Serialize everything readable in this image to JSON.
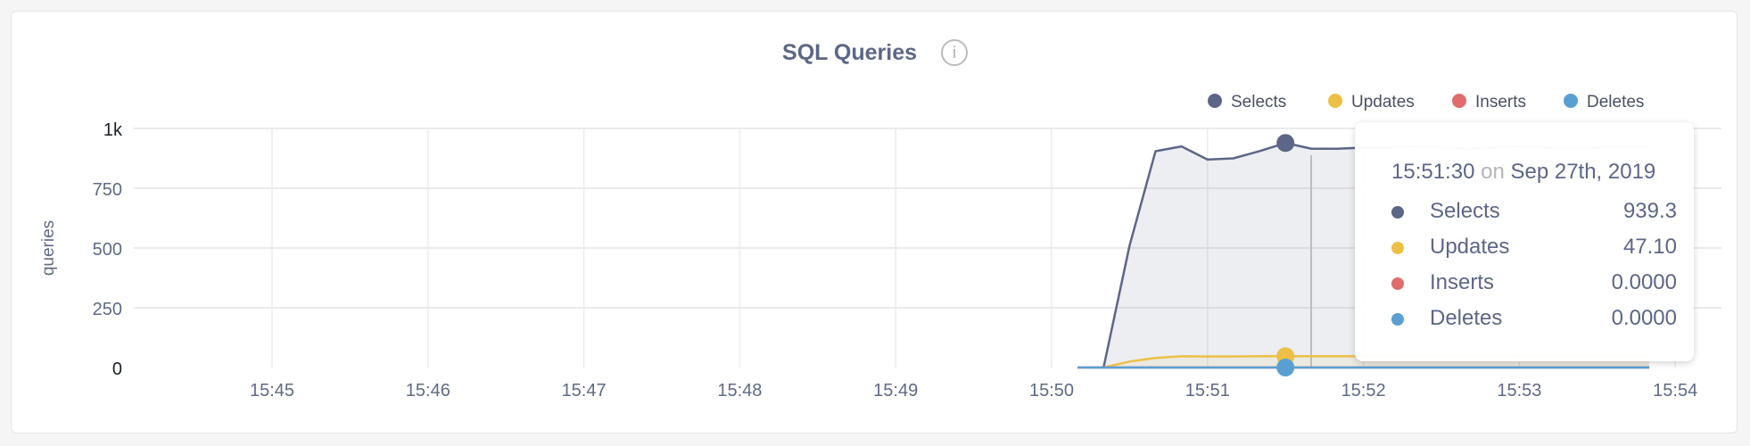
{
  "chart_data": {
    "type": "area",
    "title": "SQL Queries",
    "ylabel": "queries",
    "xlabel": "",
    "ylim": [
      0,
      1000
    ],
    "y_ticks": [
      "0",
      "250",
      "500",
      "750",
      "1k"
    ],
    "y_tick_values": [
      0,
      250,
      500,
      750,
      1000
    ],
    "x_ticks": [
      "15:45",
      "15:46",
      "15:47",
      "15:48",
      "15:49",
      "15:50",
      "15:51",
      "15:52",
      "15:53",
      "15:54"
    ],
    "grid": true,
    "legend": "top-right",
    "x": [
      "15:50:10",
      "15:50:20",
      "15:50:30",
      "15:50:40",
      "15:50:50",
      "15:51:00",
      "15:51:10",
      "15:51:20",
      "15:51:30",
      "15:51:40",
      "15:51:50",
      "15:52:00",
      "15:52:10",
      "15:52:20",
      "15:52:30",
      "15:52:40",
      "15:52:50",
      "15:53:00",
      "15:53:10",
      "15:53:20",
      "15:53:30",
      "15:53:40",
      "15:53:50"
    ],
    "series": [
      {
        "name": "Selects",
        "color": "#5c6687",
        "values": [
          null,
          0,
          510,
          905,
          925,
          870,
          875,
          905,
          939.3,
          915,
          915,
          920,
          920,
          925,
          920,
          915,
          920,
          925,
          920,
          918,
          920,
          922,
          920
        ]
      },
      {
        "name": "Updates",
        "color": "#ecc047",
        "values": [
          null,
          0,
          25,
          40,
          47,
          46,
          46,
          47,
          47.1,
          47,
          47,
          47,
          47,
          47,
          47,
          47,
          47,
          47,
          47,
          47,
          47,
          47,
          47
        ]
      },
      {
        "name": "Inserts",
        "color": "#e06c6c",
        "values": [
          0,
          0,
          0,
          0,
          0,
          0,
          0,
          0,
          0,
          0,
          0,
          0,
          0,
          0,
          0,
          0,
          0,
          0,
          0,
          0,
          0,
          0,
          0
        ]
      },
      {
        "name": "Deletes",
        "color": "#5a9fd4",
        "values": [
          0,
          0,
          0,
          0,
          0,
          0,
          0,
          0,
          0,
          0,
          0,
          0,
          0,
          0,
          0,
          0,
          0,
          0,
          0,
          0,
          0,
          0,
          0
        ]
      }
    ],
    "tooltip": {
      "time": "15:51:30",
      "on": "on",
      "date": "Sep 27th, 2019",
      "rows": [
        {
          "label": "Selects",
          "value": "939.3",
          "color": "#5c6687"
        },
        {
          "label": "Updates",
          "value": "47.10",
          "color": "#ecc047"
        },
        {
          "label": "Inserts",
          "value": "0.0000",
          "color": "#e06c6c"
        },
        {
          "label": "Deletes",
          "value": "0.0000",
          "color": "#5a9fd4"
        }
      ]
    },
    "info_icon": "info-circle-icon"
  }
}
